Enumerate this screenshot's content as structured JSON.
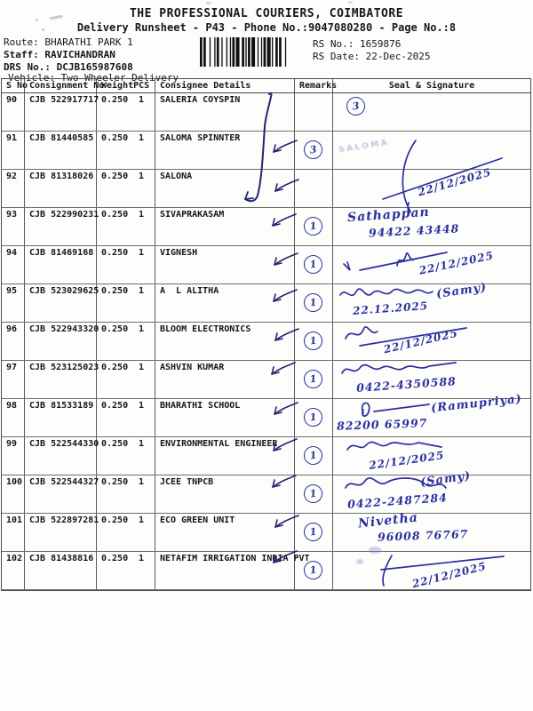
{
  "doc": {
    "title": "THE PROFESSIONAL COURIERS, COIMBATORE",
    "subtitle": "Delivery Runsheet - P43 - Phone No.:9047080280 - Page No.:8"
  },
  "meta": {
    "route_label": "Route:",
    "route": "BHARATHI PARK 1",
    "staff_label": "Staff:",
    "staff": "RAVICHANDRAN",
    "drs_label": "DRS No.:",
    "drs": "DCJB165987608",
    "vehicle_label": "Vehicle:",
    "vehicle": "Two Wheeler Delivery",
    "rs_no_label": "RS No.:",
    "rs_no": "1659876",
    "rs_date_label": "RS Date:",
    "rs_date": "22-Dec-2025",
    "barcode_icon": "barcode"
  },
  "table": {
    "columns": {
      "s_no": "S No",
      "consignment": "Consignment No",
      "weight": "Weight",
      "pcs": "PCS",
      "consignee": "Consignee Details",
      "remarks": "Remarks",
      "seal": "Seal & Signature"
    },
    "rows": [
      {
        "s_no": "90",
        "consignment": "CJB 522917717",
        "weight": "0.250",
        "pcs": "1",
        "consignee": "SALERIA COYSPIN",
        "remark": "",
        "seal": {
          "circle": "3"
        }
      },
      {
        "s_no": "91",
        "consignment": "CJB 81440585",
        "weight": "0.250",
        "pcs": "1",
        "consignee": "SALOMA SPINNTER",
        "remark": "3",
        "seal": {
          "date": "22/12/2025",
          "stamp": true
        }
      },
      {
        "s_no": "92",
        "consignment": "CJB 81318026",
        "weight": "0.250",
        "pcs": "1",
        "consignee": "SALONA",
        "remark": "",
        "seal": {}
      },
      {
        "s_no": "93",
        "consignment": "CJB 522990231",
        "weight": "0.250",
        "pcs": "1",
        "consignee": "SIVAPRAKASAM",
        "remark": "1",
        "seal": {
          "name": "Sathappan",
          "phone": "94422 43448"
        }
      },
      {
        "s_no": "94",
        "consignment": "CJB 81469168",
        "weight": "0.250",
        "pcs": "1",
        "consignee": "VIGNESH",
        "remark": "1",
        "seal": {
          "date": "22/12/2025"
        }
      },
      {
        "s_no": "95",
        "consignment": "CJB 523029625",
        "weight": "0.250",
        "pcs": "1",
        "consignee": "A  L ALITHA",
        "remark": "1",
        "seal": {
          "name": "(Samy)",
          "date": "22.12.2025"
        }
      },
      {
        "s_no": "96",
        "consignment": "CJB 522943320",
        "weight": "0.250",
        "pcs": "1",
        "consignee": "BLOOM ELECTRONICS",
        "remark": "1",
        "seal": {
          "date": "22/12/2025"
        }
      },
      {
        "s_no": "97",
        "consignment": "CJB 523125023",
        "weight": "0.250",
        "pcs": "1",
        "consignee": "ASHVIN KUMAR",
        "remark": "1",
        "seal": {
          "phone": "0422-4350588"
        }
      },
      {
        "s_no": "98",
        "consignment": "CJB 81533189",
        "weight": "0.250",
        "pcs": "1",
        "consignee": "BHARATHI SCHOOL",
        "remark": "1",
        "seal": {
          "name": "(Ramupriya)",
          "phone": "82200 65997"
        }
      },
      {
        "s_no": "99",
        "consignment": "CJB 522544330",
        "weight": "0.250",
        "pcs": "1",
        "consignee": "ENVIRONMENTAL ENGINEER",
        "remark": "1",
        "seal": {
          "date": "22/12/2025"
        }
      },
      {
        "s_no": "100",
        "consignment": "CJB 522544327",
        "weight": "0.250",
        "pcs": "1",
        "consignee": "JCEE TNPCB",
        "remark": "1",
        "seal": {
          "name": "(Samy)",
          "phone": "0422-2487284"
        }
      },
      {
        "s_no": "101",
        "consignment": "CJB 522897281",
        "weight": "0.250",
        "pcs": "1",
        "consignee": "ECO GREEN UNIT",
        "remark": "1",
        "seal": {
          "name": "Nivetha",
          "phone": "96008 76767"
        }
      },
      {
        "s_no": "102",
        "consignment": "CJB 81438816",
        "weight": "0.250",
        "pcs": "1",
        "consignee": "NETAFIM IRRIGATION INDIA PVT",
        "remark": "1",
        "seal": {
          "date": "22/12/2025"
        }
      }
    ]
  },
  "ink": {
    "color": "#2b2f9e",
    "dark": "#23276f",
    "stamp_color": "rgba(136,108,186,0.45)",
    "stamp_text": "SALOMA"
  }
}
